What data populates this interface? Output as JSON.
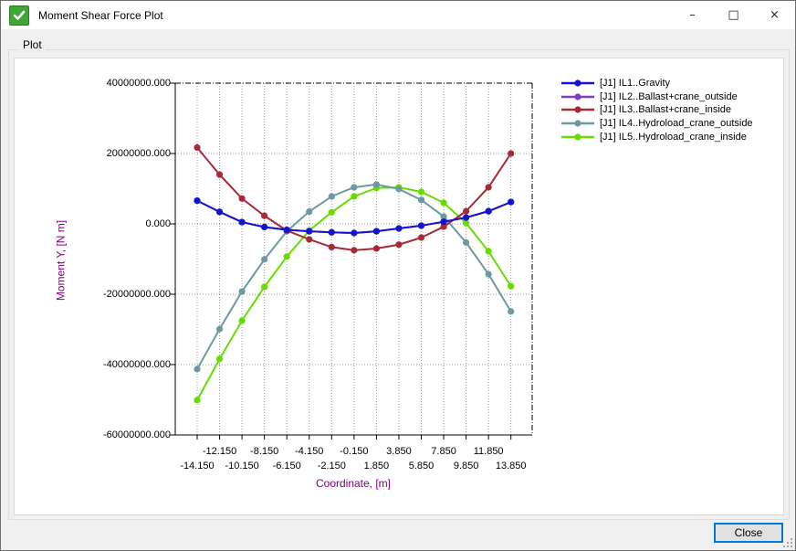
{
  "window": {
    "title": "Moment Shear Force Plot",
    "controls": {
      "minimize": "–",
      "maximize": "□",
      "close": "×"
    }
  },
  "groupbox_label": "Plot",
  "close_button_label": "Close",
  "colors": {
    "axis_title": "#800080",
    "grid": "#999999",
    "frame": "#000000",
    "close_button_focus": "#0078d7",
    "app_icon_green": "#3fa535"
  },
  "chart_data": {
    "type": "line",
    "xlabel": "Coordinate, [m]",
    "ylabel": "Moment Y, [N m]",
    "grid": true,
    "legend_position": "top-right-outside",
    "ylim": [
      -60000000,
      40000000
    ],
    "x": [
      -14.15,
      -12.15,
      -10.15,
      -8.15,
      -6.15,
      -4.15,
      -2.15,
      -0.15,
      1.85,
      3.85,
      5.85,
      7.85,
      9.85,
      11.85,
      13.85
    ],
    "x_tick_labels": [
      "-14.150",
      "-12.150",
      "-10.150",
      "-8.150",
      "-6.150",
      "-4.150",
      "-2.150",
      "-0.150",
      "1.850",
      "3.850",
      "5.850",
      "7.850",
      "9.850",
      "11.850",
      "13.850"
    ],
    "y_ticks": [
      {
        "value": 40000000,
        "label": "40000000.000"
      },
      {
        "value": 20000000,
        "label": "20000000.000"
      },
      {
        "value": 0,
        "label": "0.000"
      },
      {
        "value": -20000000,
        "label": "-20000000.000"
      },
      {
        "value": -40000000,
        "label": "-40000000.000"
      },
      {
        "value": -60000000,
        "label": "-60000000.000"
      }
    ],
    "series": [
      {
        "name": "[J1] IL1..Gravity",
        "color": "#1414cc",
        "values": [
          6600000,
          3400000,
          500000,
          -900000,
          -1700000,
          -2100000,
          -2400000,
          -2600000,
          -2100000,
          -1300000,
          -500000,
          600000,
          1800000,
          3600000,
          6200000
        ]
      },
      {
        "name": "[J1] IL2..Ballast+crane_outside",
        "color": "#7b3fc4",
        "note": "curve coincides with IL1 and is hidden beneath it in the plot",
        "values": [
          6600000,
          3400000,
          500000,
          -900000,
          -1700000,
          -2100000,
          -2400000,
          -2600000,
          -2100000,
          -1300000,
          -500000,
          600000,
          1800000,
          3600000,
          6200000
        ]
      },
      {
        "name": "[J1] IL3..Ballast+crane_inside",
        "color": "#a52a3a",
        "values": [
          21700000,
          14000000,
          7200000,
          2300000,
          -1900000,
          -4400000,
          -6600000,
          -7500000,
          -7000000,
          -5900000,
          -3900000,
          -800000,
          3600000,
          10400000,
          20000000
        ]
      },
      {
        "name": "[J1] IL4..Hydroload_crane_outside",
        "color": "#6b9aa0",
        "values": [
          -41300000,
          -29900000,
          -19200000,
          -10100000,
          -2100000,
          3500000,
          7800000,
          10400000,
          11200000,
          9900000,
          6800000,
          2100000,
          -5300000,
          -14300000,
          -24900000
        ]
      },
      {
        "name": "[J1] IL5..Hydroload_crane_inside",
        "color": "#66dd00",
        "values": [
          -50100000,
          -38400000,
          -27500000,
          -17900000,
          -9300000,
          -1900000,
          3300000,
          7800000,
          10200000,
          10400000,
          9100000,
          6000000,
          200000,
          -7800000,
          -17700000
        ]
      }
    ]
  }
}
